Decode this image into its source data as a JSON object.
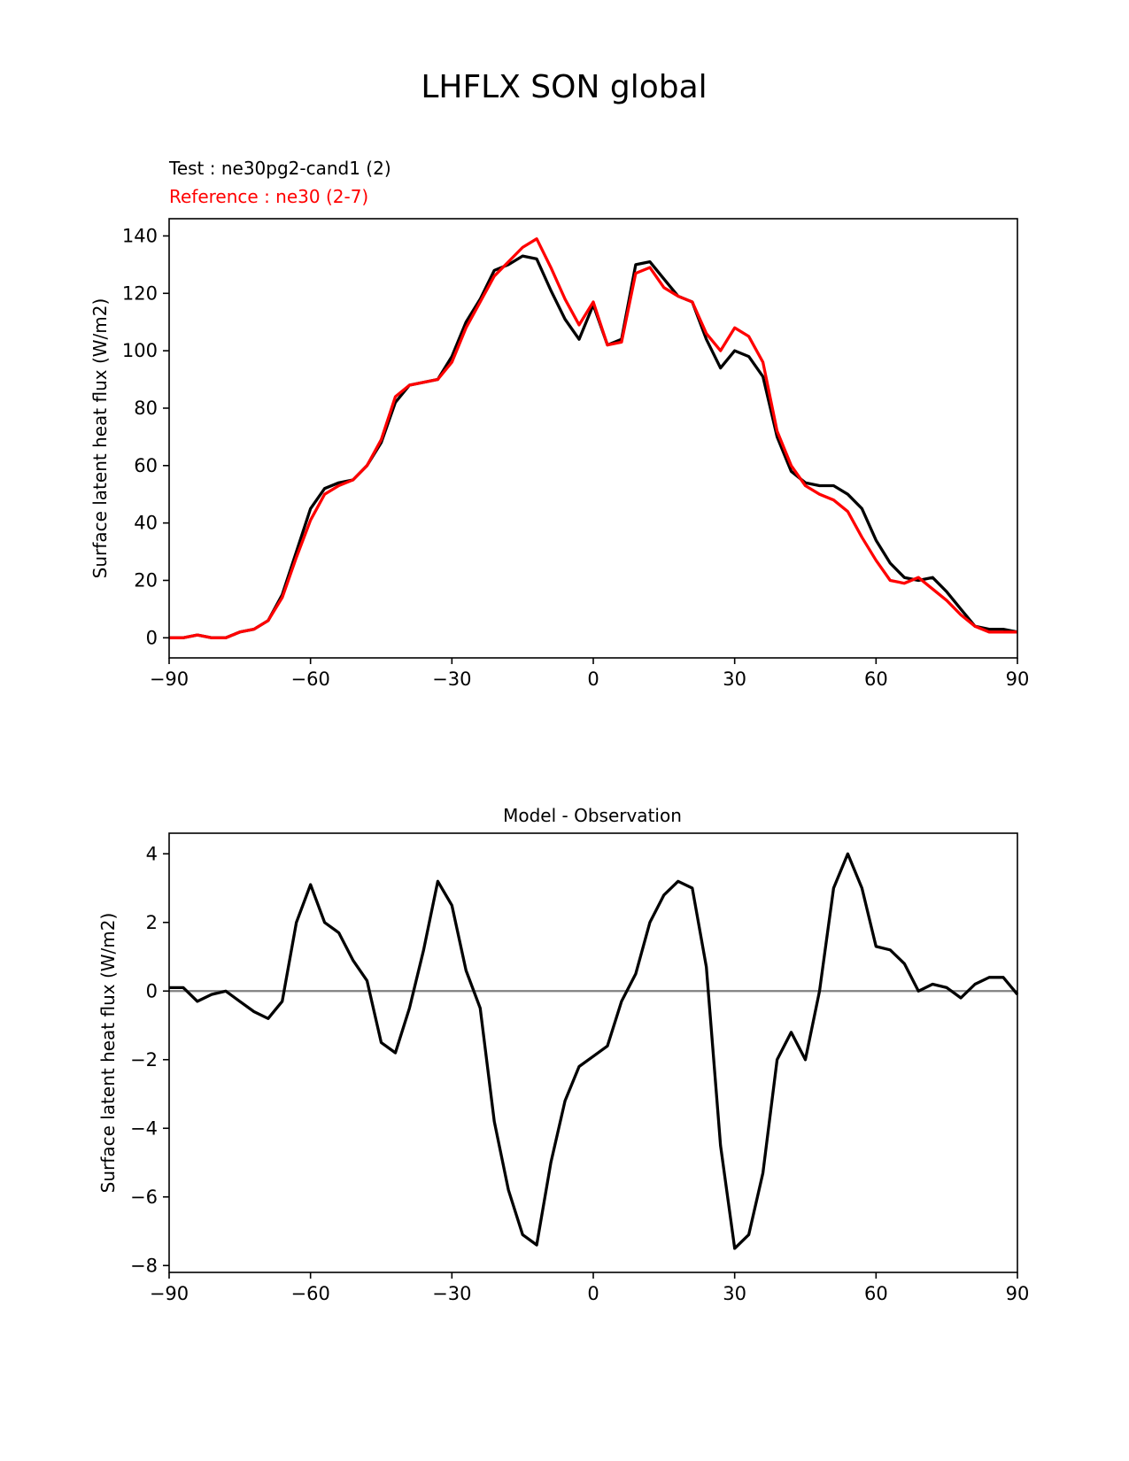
{
  "figure_title": "LHFLX SON global",
  "chart_data": [
    {
      "type": "line",
      "test_label": "Test : ne30pg2-cand1 (2)",
      "reference_label": "Reference : ne30 (2-7)",
      "ylabel": "Surface latent heat flux (W/m2)",
      "xlabel": "",
      "xlim": [
        -90,
        90
      ],
      "ylim": [
        -7,
        146
      ],
      "xticks": [
        -90,
        -60,
        -30,
        0,
        30,
        60,
        90
      ],
      "xtick_labels": [
        "−90",
        "−60",
        "−30",
        "0",
        "30",
        "60",
        "90"
      ],
      "yticks": [
        0,
        20,
        40,
        60,
        80,
        100,
        120,
        140
      ],
      "ytick_labels": [
        "0",
        "20",
        "40",
        "60",
        "80",
        "100",
        "120",
        "140"
      ],
      "x": [
        -90,
        -87,
        -84,
        -81,
        -78,
        -75,
        -72,
        -69,
        -66,
        -63,
        -60,
        -57,
        -54,
        -51,
        -48,
        -45,
        -42,
        -39,
        -36,
        -33,
        -30,
        -27,
        -24,
        -21,
        -18,
        -15,
        -12,
        -9,
        -6,
        -3,
        0,
        3,
        6,
        9,
        12,
        15,
        18,
        21,
        24,
        27,
        30,
        33,
        36,
        39,
        42,
        45,
        48,
        51,
        54,
        57,
        60,
        63,
        66,
        69,
        72,
        75,
        78,
        81,
        84,
        87,
        90
      ],
      "series": [
        {
          "name": "Test",
          "color": "#000000",
          "values": [
            0,
            0,
            1,
            0,
            0,
            2,
            3,
            6,
            15,
            30,
            45,
            52,
            54,
            55,
            60,
            68,
            82,
            88,
            89,
            90,
            98,
            110,
            118,
            128,
            130,
            133,
            132,
            121,
            111,
            104,
            116,
            102,
            104,
            130,
            131,
            125,
            119,
            117,
            104,
            94,
            100,
            98,
            91,
            70,
            58,
            54,
            53,
            53,
            50,
            45,
            34,
            26,
            21,
            20,
            21,
            16,
            10,
            4,
            3,
            3,
            2
          ],
          "values_labels": []
        },
        {
          "name": "Reference",
          "color": "#ff0000",
          "values": [
            0,
            0,
            1,
            0,
            0,
            2,
            3,
            6,
            14,
            28,
            41,
            50,
            53,
            55,
            60,
            69,
            84,
            88,
            89,
            90,
            96,
            108,
            117,
            126,
            131,
            136,
            139,
            129,
            118,
            109,
            117,
            102,
            103,
            127,
            129,
            122,
            119,
            117,
            106,
            100,
            108,
            105,
            96,
            72,
            60,
            53,
            50,
            48,
            44,
            35,
            27,
            20,
            19,
            21,
            17,
            13,
            8,
            4,
            2,
            2,
            2
          ]
        }
      ]
    },
    {
      "type": "line",
      "title": "Model - Observation",
      "ylabel": "Surface latent heat flux (W/m2)",
      "xlabel": "",
      "xlim": [
        -90,
        90
      ],
      "ylim": [
        -8.2,
        4.6
      ],
      "xticks": [
        -90,
        -60,
        -30,
        0,
        30,
        60,
        90
      ],
      "xtick_labels": [
        "−90",
        "−60",
        "−30",
        "0",
        "30",
        "60",
        "90"
      ],
      "yticks": [
        -8,
        -6,
        -4,
        -2,
        0,
        2,
        4
      ],
      "ytick_labels": [
        "−8",
        "−6",
        "−4",
        "−2",
        "0",
        "2",
        "4"
      ],
      "zero_line_color": "#808080",
      "x": [
        -90,
        -87,
        -84,
        -81,
        -78,
        -75,
        -72,
        -69,
        -66,
        -63,
        -60,
        -57,
        -54,
        -51,
        -48,
        -45,
        -42,
        -39,
        -36,
        -33,
        -30,
        -27,
        -24,
        -21,
        -18,
        -15,
        -12,
        -9,
        -6,
        -3,
        0,
        3,
        6,
        9,
        12,
        15,
        18,
        21,
        24,
        27,
        30,
        33,
        36,
        39,
        42,
        45,
        48,
        51,
        54,
        57,
        60,
        63,
        66,
        69,
        72,
        75,
        78,
        81,
        84,
        87,
        90
      ],
      "series": [
        {
          "name": "Model - Observation",
          "color": "#000000",
          "values": [
            0.1,
            0.1,
            -0.3,
            -0.1,
            0.0,
            -0.3,
            -0.6,
            -0.8,
            -0.3,
            2.0,
            3.1,
            2.0,
            1.7,
            0.9,
            0.3,
            -1.5,
            -1.8,
            -0.5,
            1.2,
            3.2,
            2.5,
            0.6,
            -0.5,
            -3.8,
            -5.8,
            -7.1,
            -7.4,
            -5.0,
            -3.2,
            -2.2,
            -1.9,
            -1.6,
            -0.3,
            0.5,
            2.0,
            2.8,
            3.2,
            3.0,
            0.7,
            -4.5,
            -7.5,
            -7.1,
            -5.3,
            -2.0,
            -1.2,
            -2.0,
            0.0,
            3.0,
            4.0,
            3.0,
            1.3,
            1.2,
            0.8,
            0.0,
            0.2,
            0.1,
            -0.2,
            0.2,
            0.4,
            0.4,
            -0.1
          ]
        }
      ]
    }
  ]
}
